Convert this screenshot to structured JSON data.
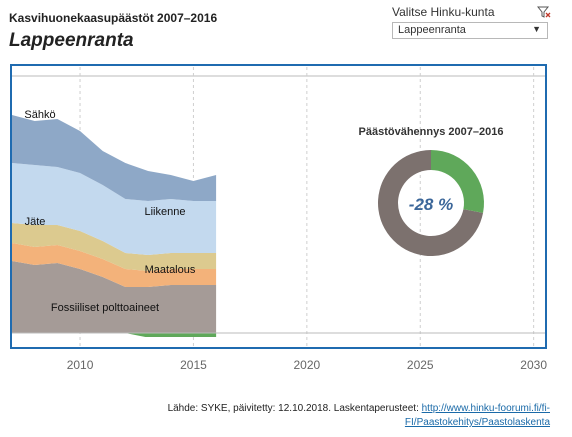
{
  "header": {
    "title": "Kasvihuonekaasupäästöt 2007–2016",
    "municipality": "Lappeenranta"
  },
  "filter": {
    "label": "Valitse Hinku-kunta",
    "selected": "Lappeenranta",
    "icon": "filter-clear-icon"
  },
  "footer": {
    "source_text": "Lähde: SYKE, päivitetty: 12.10.2018. Laskentaperusteet: ",
    "link_line1": "http://www.hinku-foorumi.fi/fi-",
    "link_line2": "FI/Paastokehitys/Paastolaskenta"
  },
  "chart_data": [
    {
      "type": "area",
      "stacked": true,
      "x": [
        2007,
        2008,
        2009,
        2010,
        2011,
        2012,
        2013,
        2014,
        2015,
        2016
      ],
      "xlim": [
        2007,
        2030.5
      ],
      "x_ticks": [
        "2010",
        "2015",
        "2020",
        "2025",
        "2030"
      ],
      "grid": "vertical dashed",
      "series": [
        {
          "name": "Fossiiliset polttoaineet",
          "color": "#a59b97",
          "values": [
            36,
            34,
            35,
            32,
            28,
            23,
            23,
            24,
            24,
            24
          ]
        },
        {
          "name": "Maatalous",
          "color": "#f3b27a",
          "values": [
            9,
            9,
            9,
            9,
            9,
            9,
            8,
            8,
            8,
            8
          ]
        },
        {
          "name": "Jäte",
          "color": "#dcca8f",
          "values": [
            10,
            11,
            10,
            10,
            9,
            8,
            8,
            8,
            8,
            8
          ]
        },
        {
          "name": "Liikenne",
          "color": "#c3d9ee",
          "values": [
            30,
            30,
            29,
            29,
            28,
            27,
            27,
            27,
            26,
            26
          ]
        },
        {
          "name": "Sähkö",
          "color": "#8ea8c7",
          "values": [
            24,
            22,
            24,
            21,
            17,
            18,
            15,
            12,
            10,
            13
          ]
        }
      ],
      "negative_series": {
        "color": "#5fa85a",
        "x": [
          2012,
          2016
        ],
        "values": [
          -2,
          -2
        ]
      },
      "labels": [
        "Sähkö",
        "Jäte",
        "Liikenne",
        "Maatalous",
        "Fossiiliset polttoaineet"
      ]
    },
    {
      "type": "pie",
      "donut": true,
      "title": "Päästövähennys 2007–2016",
      "center_label": "-28 %",
      "reduction_percent": 28,
      "colors": {
        "reduction": "#5fa85a",
        "remaining": "#7c716e"
      }
    }
  ]
}
